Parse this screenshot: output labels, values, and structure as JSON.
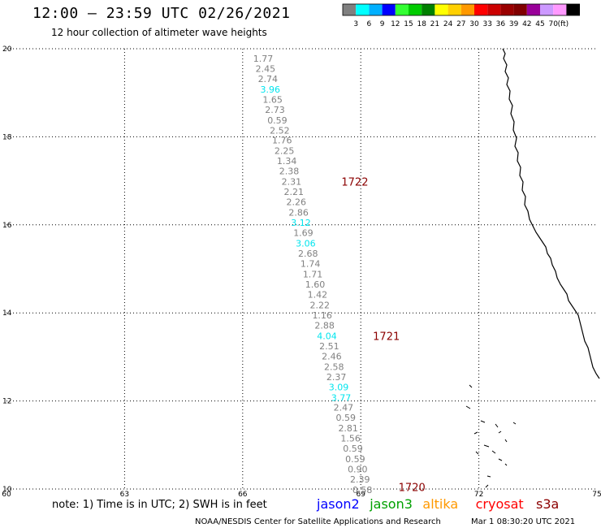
{
  "header": {
    "title": "12:00 – 23:59 UTC 02/26/2021",
    "subtitle": "12 hour collection of altimeter wave heights"
  },
  "legend": {
    "colors": [
      "#808080",
      "#00ffff",
      "#00b0ff",
      "#0000ff",
      "#33ff33",
      "#00cc00",
      "#008000",
      "#ffff00",
      "#ffd000",
      "#ff9900",
      "#ff0000",
      "#cc0000",
      "#990000",
      "#800000",
      "#990099",
      "#cc99ff",
      "#ff99ff",
      "#000000"
    ],
    "labels": [
      "3",
      "6",
      "9",
      "12",
      "15",
      "18",
      "21",
      "24",
      "27",
      "30",
      "33",
      "36",
      "39",
      "42",
      "45",
      "70"
    ],
    "unit": "(ft)"
  },
  "axes": {
    "x_ticks": [
      "60",
      "63",
      "66",
      "69",
      "72",
      "75"
    ],
    "y_ticks": [
      "10",
      "12",
      "14",
      "16",
      "18",
      "20"
    ],
    "xlim": [
      60,
      75
    ],
    "ylim": [
      10,
      20
    ]
  },
  "colors": {
    "normal": "#808080",
    "cyan": "#00e5ee",
    "track_label": "#8b0000"
  },
  "observations": [
    {
      "lon": 66.52,
      "lat": 19.78,
      "v": "1.77",
      "c": "normal"
    },
    {
      "lon": 66.58,
      "lat": 19.55,
      "v": "2.45",
      "c": "normal"
    },
    {
      "lon": 66.64,
      "lat": 19.32,
      "v": "2.74",
      "c": "normal"
    },
    {
      "lon": 66.7,
      "lat": 19.08,
      "v": "3.96",
      "c": "cyan"
    },
    {
      "lon": 66.76,
      "lat": 18.85,
      "v": "1.65",
      "c": "normal"
    },
    {
      "lon": 66.82,
      "lat": 18.62,
      "v": "2.73",
      "c": "normal"
    },
    {
      "lon": 66.88,
      "lat": 18.38,
      "v": "0.59",
      "c": "normal"
    },
    {
      "lon": 66.94,
      "lat": 18.15,
      "v": "2.52",
      "c": "normal"
    },
    {
      "lon": 67.0,
      "lat": 17.92,
      "v": "1.76",
      "c": "normal"
    },
    {
      "lon": 67.06,
      "lat": 17.68,
      "v": "2.25",
      "c": "normal"
    },
    {
      "lon": 67.12,
      "lat": 17.45,
      "v": "1.34",
      "c": "normal"
    },
    {
      "lon": 67.18,
      "lat": 17.22,
      "v": "2.38",
      "c": "normal"
    },
    {
      "lon": 67.24,
      "lat": 16.98,
      "v": "2.31",
      "c": "normal"
    },
    {
      "lon": 67.3,
      "lat": 16.75,
      "v": "2.21",
      "c": "normal"
    },
    {
      "lon": 67.36,
      "lat": 16.52,
      "v": "2.26",
      "c": "normal"
    },
    {
      "lon": 67.42,
      "lat": 16.28,
      "v": "2.86",
      "c": "normal"
    },
    {
      "lon": 67.48,
      "lat": 16.05,
      "v": "3.12",
      "c": "cyan"
    },
    {
      "lon": 67.54,
      "lat": 15.82,
      "v": "1.69",
      "c": "normal"
    },
    {
      "lon": 67.6,
      "lat": 15.58,
      "v": "3.06",
      "c": "cyan"
    },
    {
      "lon": 67.66,
      "lat": 15.35,
      "v": "2.68",
      "c": "normal"
    },
    {
      "lon": 67.72,
      "lat": 15.12,
      "v": "1.74",
      "c": "normal"
    },
    {
      "lon": 67.78,
      "lat": 14.88,
      "v": "1.71",
      "c": "normal"
    },
    {
      "lon": 67.84,
      "lat": 14.65,
      "v": "1.60",
      "c": "normal"
    },
    {
      "lon": 67.9,
      "lat": 14.42,
      "v": "1.42",
      "c": "normal"
    },
    {
      "lon": 67.96,
      "lat": 14.18,
      "v": "2.22",
      "c": "normal"
    },
    {
      "lon": 68.02,
      "lat": 13.95,
      "v": "1.16",
      "c": "normal"
    },
    {
      "lon": 68.08,
      "lat": 13.72,
      "v": "2.88",
      "c": "normal"
    },
    {
      "lon": 68.14,
      "lat": 13.48,
      "v": "4.04",
      "c": "cyan"
    },
    {
      "lon": 68.2,
      "lat": 13.25,
      "v": "2.51",
      "c": "normal"
    },
    {
      "lon": 68.26,
      "lat": 13.02,
      "v": "2.46",
      "c": "normal"
    },
    {
      "lon": 68.32,
      "lat": 12.78,
      "v": "2.58",
      "c": "normal"
    },
    {
      "lon": 68.38,
      "lat": 12.55,
      "v": "2.37",
      "c": "normal"
    },
    {
      "lon": 68.44,
      "lat": 12.32,
      "v": "3.09",
      "c": "cyan"
    },
    {
      "lon": 68.5,
      "lat": 12.08,
      "v": "3.77",
      "c": "cyan"
    },
    {
      "lon": 68.56,
      "lat": 11.85,
      "v": "2.47",
      "c": "normal"
    },
    {
      "lon": 68.62,
      "lat": 11.62,
      "v": "0.59",
      "c": "normal"
    },
    {
      "lon": 68.68,
      "lat": 11.38,
      "v": "2.81",
      "c": "normal"
    },
    {
      "lon": 68.74,
      "lat": 11.15,
      "v": "1.56",
      "c": "normal"
    },
    {
      "lon": 68.8,
      "lat": 10.92,
      "v": "0.59",
      "c": "normal"
    },
    {
      "lon": 68.86,
      "lat": 10.68,
      "v": "0.59",
      "c": "normal"
    },
    {
      "lon": 68.92,
      "lat": 10.45,
      "v": "0.90",
      "c": "normal"
    },
    {
      "lon": 68.98,
      "lat": 10.22,
      "v": "2.39",
      "c": "normal"
    },
    {
      "lon": 69.04,
      "lat": 9.98,
      "v": "0.58",
      "c": "normal"
    }
  ],
  "track_labels": [
    {
      "lon": 68.85,
      "lat": 16.98,
      "v": "1722"
    },
    {
      "lon": 69.65,
      "lat": 13.48,
      "v": "1721"
    },
    {
      "lon": 70.3,
      "lat": 10.05,
      "v": "1720"
    }
  ],
  "footer": {
    "note": "note: 1) Time is in UTC; 2) SWH is in feet",
    "missions": [
      {
        "name": "jason2",
        "color": "#0000ff"
      },
      {
        "name": "jason3",
        "color": "#00a000"
      },
      {
        "name": "altika",
        "color": "#ff9900"
      },
      {
        "name": "cryosat",
        "color": "#ff0000"
      },
      {
        "name": "s3a",
        "color": "#8b0000"
      }
    ],
    "credit": "NOAA/NESDIS Center for Satellite Applications and Research",
    "timestamp": "Mar  1 08:30:20 UTC 2021"
  }
}
